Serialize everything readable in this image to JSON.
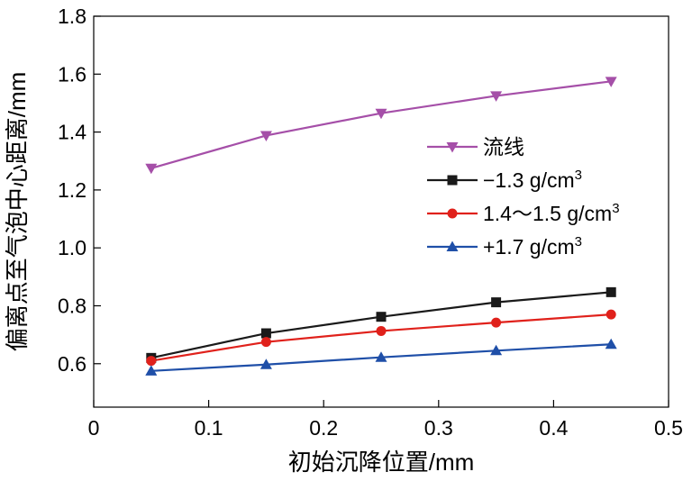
{
  "chart_data": {
    "type": "line",
    "title": "",
    "xlabel": "初始沉降位置/mm",
    "ylabel": "偏离点至气泡中心距离/mm",
    "xlim": [
      0,
      0.5
    ],
    "ylim": [
      0.45,
      1.8
    ],
    "x_ticks": [
      "0",
      "0.1",
      "0.2",
      "0.3",
      "0.4",
      "0.5"
    ],
    "y_ticks": [
      "0.6",
      "0.8",
      "1.0",
      "1.2",
      "1.4",
      "1.6",
      "1.8"
    ],
    "grid": false,
    "legend_position": "right",
    "x": [
      0.05,
      0.15,
      0.25,
      0.35,
      0.45
    ],
    "series": [
      {
        "name": "流线",
        "values": [
          1.275,
          1.388,
          1.465,
          1.525,
          1.575
        ],
        "color": "#a54fa8",
        "marker": "triangle-down"
      },
      {
        "name": "−1.3 g/cm",
        "sup": "3",
        "values": [
          0.62,
          0.705,
          0.762,
          0.812,
          0.847
        ],
        "color": "#1a1a1a",
        "marker": "square"
      },
      {
        "name": "1.4～1.5 g/cm",
        "sup": "3",
        "values": [
          0.61,
          0.675,
          0.713,
          0.742,
          0.77
        ],
        "color": "#e0211b",
        "marker": "circle"
      },
      {
        "name": "+1.7 g/cm",
        "sup": "3",
        "values": [
          0.575,
          0.597,
          0.622,
          0.645,
          0.667
        ],
        "color": "#1f4fa8",
        "marker": "triangle-up"
      }
    ]
  }
}
